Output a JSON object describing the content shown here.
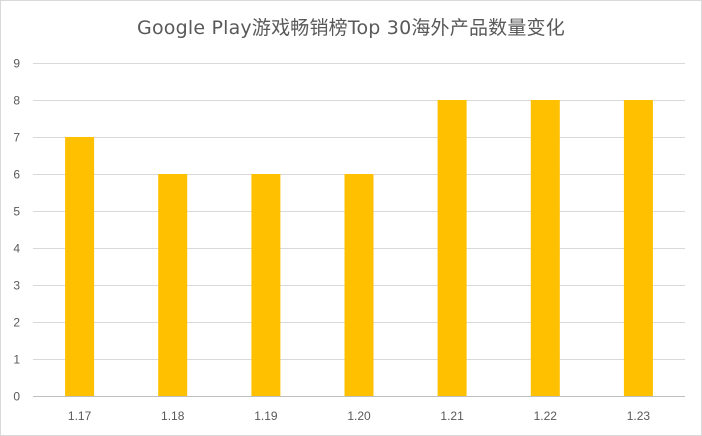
{
  "chart_data": {
    "type": "bar",
    "title": "Google Play游戏畅销榜Top 30海外产品数量变化",
    "categories": [
      "1.17",
      "1.18",
      "1.19",
      "1.20",
      "1.21",
      "1.22",
      "1.23"
    ],
    "values": [
      7,
      6,
      6,
      6,
      8,
      8,
      8
    ],
    "ylim": [
      0,
      9
    ],
    "yticks": [
      0,
      1,
      2,
      3,
      4,
      5,
      6,
      7,
      8,
      9
    ],
    "grid": true,
    "legend": "none",
    "bar_color": "#FFC000"
  }
}
